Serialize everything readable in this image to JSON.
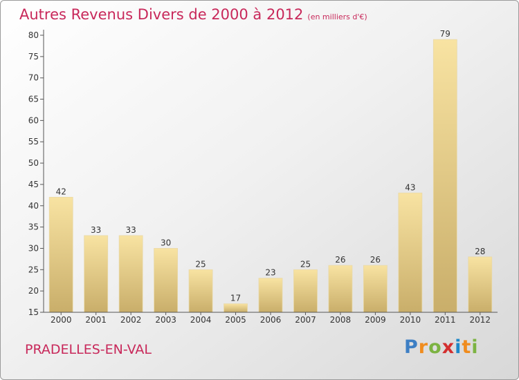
{
  "title": "Autres Revenus Divers de 2000 à 2012",
  "subtitle": "(en milliers d'€)",
  "place": "PRADELLES-EN-VAL",
  "logo": {
    "letters": [
      "P",
      "r",
      "o",
      "x",
      "i",
      "t",
      "i"
    ],
    "colors": [
      "#3d7fc4",
      "#f08c1e",
      "#7cb342",
      "#d32f2f",
      "#1e88c8",
      "#f08c1e",
      "#7cb342"
    ]
  },
  "colors": {
    "title": "#c8285a",
    "bar_light": "#f8e3a2",
    "bar_dark": "#c9ae6a",
    "axis": "#555555",
    "grid_tick": "#444444"
  },
  "chart_data": {
    "type": "bar",
    "title": "Autres Revenus Divers de 2000 à 2012",
    "subtitle": "(en milliers d'€)",
    "xlabel": "",
    "ylabel": "",
    "categories": [
      "2000",
      "2001",
      "2002",
      "2003",
      "2004",
      "2005",
      "2006",
      "2007",
      "2008",
      "2009",
      "2010",
      "2011",
      "2012"
    ],
    "values": [
      42,
      33,
      33,
      30,
      25,
      17,
      23,
      25,
      26,
      26,
      43,
      79,
      28
    ],
    "ylim": [
      15,
      80
    ],
    "yticks": [
      15,
      20,
      25,
      30,
      35,
      40,
      45,
      50,
      55,
      60,
      65,
      70,
      75,
      80
    ],
    "grid": false,
    "legend": "none",
    "data_labels": true
  }
}
